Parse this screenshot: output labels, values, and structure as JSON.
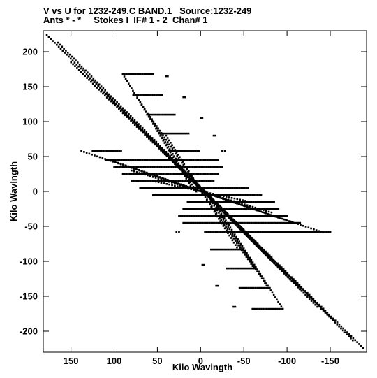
{
  "chart_data": {
    "type": "scatter",
    "title_line1": "V vs U for 1232-249.C BAND.1   Source:1232-249",
    "title_line2": "Ants * - *     Stokes I  IF# 1 - 2  Chan# 1",
    "xlabel": "Kilo Wavlngth",
    "ylabel": "Kilo Wavlngth",
    "xlim": [
      182,
      -192
    ],
    "ylim": [
      -230,
      230
    ],
    "xticks": [
      150,
      100,
      50,
      0,
      -50,
      -100,
      -150
    ],
    "yticks": [
      200,
      150,
      100,
      50,
      0,
      -50,
      -100,
      -150,
      -200
    ],
    "point_color": "#000000",
    "tracks": [
      {
        "x0": 178,
        "y0": 224,
        "x1": -188,
        "y1": -224
      },
      {
        "x0": 165,
        "y0": 213,
        "x1": -176,
        "y1": -213
      },
      {
        "x0": 150,
        "y0": 185,
        "x1": -155,
        "y1": -185
      },
      {
        "x0": 130,
        "y0": 165,
        "x1": -135,
        "y1": -165
      },
      {
        "x0": 110,
        "y0": 140,
        "x1": -115,
        "y1": -140
      },
      {
        "x0": 90,
        "y0": 168,
        "x1": 10,
        "y1": 5
      },
      {
        "x0": -10,
        "y0": -5,
        "x1": -95,
        "y1": -168
      },
      {
        "x0": 75,
        "y0": 138,
        "x1": 5,
        "y1": 0
      },
      {
        "x0": -5,
        "y0": 0,
        "x1": -78,
        "y1": -138
      },
      {
        "x0": 60,
        "y0": 110,
        "x1": -62,
        "y1": -110
      },
      {
        "x0": 40,
        "y0": 80,
        "x1": -42,
        "y1": -80
      },
      {
        "x0": 138,
        "y0": 58,
        "x1": -140,
        "y1": -58
      },
      {
        "x0": 105,
        "y0": 45,
        "x1": -108,
        "y1": -45
      },
      {
        "x0": 80,
        "y0": 30,
        "x1": -82,
        "y1": -30
      },
      {
        "x0": 55,
        "y0": 15,
        "x1": -58,
        "y1": -15
      }
    ],
    "horizontal_rows": [
      {
        "y": 168,
        "x0": 90,
        "x1": 55
      },
      {
        "y": 165,
        "x0": 40,
        "x1": 38
      },
      {
        "y": 138,
        "x0": 78,
        "x1": 45
      },
      {
        "y": 135,
        "x0": 20,
        "x1": 18
      },
      {
        "y": 110,
        "x0": 62,
        "x1": 30
      },
      {
        "y": 105,
        "x0": 0,
        "x1": -2
      },
      {
        "y": 83,
        "x0": 48,
        "x1": 14
      },
      {
        "y": 80,
        "x0": -15,
        "x1": -17
      },
      {
        "y": 58,
        "x0": 125,
        "x1": 92
      },
      {
        "y": 58,
        "x0": 36,
        "x1": 2
      },
      {
        "y": 58,
        "x0": -25,
        "x1": -28
      },
      {
        "y": 45,
        "x0": 110,
        "x1": -20
      },
      {
        "y": 35,
        "x0": 100,
        "x1": -25
      },
      {
        "y": 25,
        "x0": 90,
        "x1": -20
      },
      {
        "y": 15,
        "x0": 80,
        "x1": -15
      },
      {
        "y": 5,
        "x0": 70,
        "x1": -55
      },
      {
        "y": -5,
        "x0": 55,
        "x1": -70
      },
      {
        "y": -15,
        "x0": 15,
        "x1": -85
      },
      {
        "y": -25,
        "x0": 20,
        "x1": -90
      },
      {
        "y": -35,
        "x0": 25,
        "x1": -100
      },
      {
        "y": -45,
        "x0": 20,
        "x1": -115
      },
      {
        "y": -58,
        "x0": -5,
        "x1": -150
      },
      {
        "y": -58,
        "x0": 25,
        "x1": 28
      },
      {
        "y": -83,
        "x0": -12,
        "x1": -48
      },
      {
        "y": -105,
        "x0": -2,
        "x1": -4
      },
      {
        "y": -110,
        "x0": -30,
        "x1": -62
      },
      {
        "y": -135,
        "x0": -18,
        "x1": -20
      },
      {
        "y": -138,
        "x0": -45,
        "x1": -80
      },
      {
        "y": -165,
        "x0": -38,
        "x1": -40
      },
      {
        "y": -168,
        "x0": -60,
        "x1": -95
      }
    ]
  }
}
